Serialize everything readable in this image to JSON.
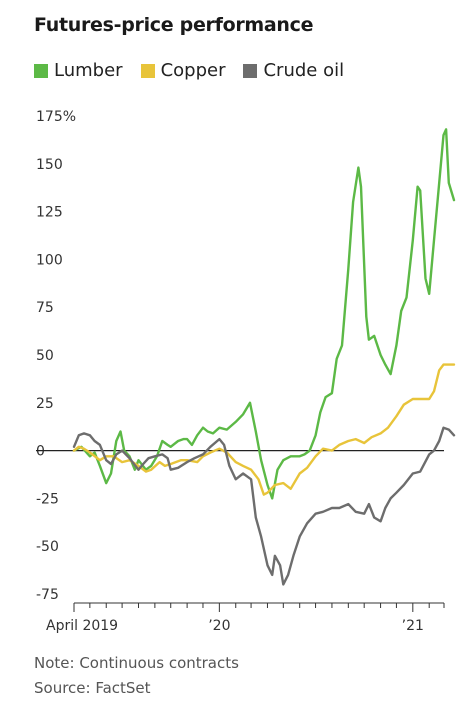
{
  "header": {
    "title": "Futures-price performance"
  },
  "legend": [
    {
      "label": "Lumber",
      "color": "#5cb946"
    },
    {
      "label": "Copper",
      "color": "#e8c43a"
    },
    {
      "label": "Crude oil",
      "color": "#6d6d6d"
    }
  ],
  "footer": {
    "note": "Note: Continuous contracts",
    "source": "Source: FactSet"
  },
  "chart_data": {
    "type": "line",
    "title": "Futures-price performance",
    "xlabel": "",
    "ylabel": "",
    "ylim": [
      -75,
      175
    ],
    "yticks": [
      -75,
      -50,
      -25,
      0,
      25,
      50,
      75,
      100,
      125,
      150,
      175
    ],
    "ytick_labels": [
      "-75",
      "-50",
      "-25",
      "0",
      "25",
      "50",
      "75",
      "100",
      "125",
      "150",
      "175%"
    ],
    "x_range": [
      "2019-04",
      "2021-03"
    ],
    "xtick_labels": [
      {
        "label": "April 2019",
        "x": "2019-04"
      },
      {
        "label": "’20",
        "x": "2020-01"
      },
      {
        "label": "’21",
        "x": "2021-01"
      }
    ],
    "grid": false,
    "legend_position": "top-left",
    "series": [
      {
        "name": "Lumber",
        "color": "#5cb946",
        "points": [
          [
            "2019-04",
            0
          ],
          [
            "2019-04-15",
            2
          ],
          [
            "2019-05",
            -3
          ],
          [
            "2019-05-10",
            -1
          ],
          [
            "2019-05-20",
            -8
          ],
          [
            "2019-06",
            -17
          ],
          [
            "2019-06-10",
            -12
          ],
          [
            "2019-06-20",
            5
          ],
          [
            "2019-06-28",
            10
          ],
          [
            "2019-07-05",
            0
          ],
          [
            "2019-07-15",
            -3
          ],
          [
            "2019-07-25",
            -10
          ],
          [
            "2019-08",
            -5
          ],
          [
            "2019-08-15",
            -10
          ],
          [
            "2019-08-25",
            -8
          ],
          [
            "2019-09-05",
            -3
          ],
          [
            "2019-09-15",
            5
          ],
          [
            "2019-09-25",
            3
          ],
          [
            "2019-10",
            2
          ],
          [
            "2019-10-15",
            5
          ],
          [
            "2019-10-25",
            6
          ],
          [
            "2019-11",
            6
          ],
          [
            "2019-11-10",
            3
          ],
          [
            "2019-11-20",
            8
          ],
          [
            "2019-12",
            12
          ],
          [
            "2019-12-10",
            10
          ],
          [
            "2019-12-20",
            9
          ],
          [
            "2020-01",
            12
          ],
          [
            "2020-01-15",
            11
          ],
          [
            "2020-02",
            15
          ],
          [
            "2020-02-15",
            19
          ],
          [
            "2020-02-28",
            25
          ],
          [
            "2020-03-10",
            10
          ],
          [
            "2020-03-20",
            -5
          ],
          [
            "2020-04",
            -18
          ],
          [
            "2020-04-10",
            -25
          ],
          [
            "2020-04-20",
            -10
          ],
          [
            "2020-05",
            -5
          ],
          [
            "2020-05-15",
            -3
          ],
          [
            "2020-06",
            -3
          ],
          [
            "2020-06-10",
            -2
          ],
          [
            "2020-06-20",
            0
          ],
          [
            "2020-07",
            8
          ],
          [
            "2020-07-10",
            20
          ],
          [
            "2020-07-20",
            28
          ],
          [
            "2020-08",
            30
          ],
          [
            "2020-08-10",
            48
          ],
          [
            "2020-08-20",
            55
          ],
          [
            "2020-09",
            95
          ],
          [
            "2020-09-10",
            130
          ],
          [
            "2020-09-20",
            148
          ],
          [
            "2020-09-25",
            138
          ],
          [
            "2020-10-05",
            70
          ],
          [
            "2020-10-10",
            58
          ],
          [
            "2020-10-20",
            60
          ],
          [
            "2020-11",
            50
          ],
          [
            "2020-11-10",
            45
          ],
          [
            "2020-11-20",
            40
          ],
          [
            "2020-12",
            55
          ],
          [
            "2020-12-10",
            73
          ],
          [
            "2020-12-20",
            80
          ],
          [
            "2021-01",
            110
          ],
          [
            "2021-01-10",
            138
          ],
          [
            "2021-01-15",
            136
          ],
          [
            "2021-01-25",
            90
          ],
          [
            "2021-02",
            82
          ],
          [
            "2021-02-10",
            110
          ],
          [
            "2021-02-20",
            140
          ],
          [
            "2021-02-28",
            165
          ],
          [
            "2021-03-05",
            168
          ],
          [
            "2021-03-10",
            140
          ],
          [
            "2021-03-20",
            131
          ]
        ]
      },
      {
        "name": "Copper",
        "color": "#e8c43a",
        "points": [
          [
            "2019-04",
            0
          ],
          [
            "2019-04-10",
            2
          ],
          [
            "2019-04-20",
            1
          ],
          [
            "2019-05",
            -1
          ],
          [
            "2019-05-20",
            -5
          ],
          [
            "2019-06",
            -3
          ],
          [
            "2019-06-15",
            -3
          ],
          [
            "2019-07",
            -6
          ],
          [
            "2019-07-15",
            -5
          ],
          [
            "2019-08",
            -8
          ],
          [
            "2019-08-15",
            -11
          ],
          [
            "2019-08-25",
            -10
          ],
          [
            "2019-09-10",
            -6
          ],
          [
            "2019-09-20",
            -8
          ],
          [
            "2019-10",
            -7
          ],
          [
            "2019-10-20",
            -5
          ],
          [
            "2019-11",
            -5
          ],
          [
            "2019-11-20",
            -6
          ],
          [
            "2019-12",
            -3
          ],
          [
            "2019-12-15",
            -1
          ],
          [
            "2020-01",
            1
          ],
          [
            "2020-01-15",
            -1
          ],
          [
            "2020-02",
            -6
          ],
          [
            "2020-02-15",
            -8
          ],
          [
            "2020-03",
            -10
          ],
          [
            "2020-03-15",
            -15
          ],
          [
            "2020-03-25",
            -23
          ],
          [
            "2020-04",
            -22
          ],
          [
            "2020-04-15",
            -18
          ],
          [
            "2020-05",
            -17
          ],
          [
            "2020-05-15",
            -20
          ],
          [
            "2020-06",
            -12
          ],
          [
            "2020-06-15",
            -9
          ],
          [
            "2020-07",
            -3
          ],
          [
            "2020-07-15",
            1
          ],
          [
            "2020-08",
            0
          ],
          [
            "2020-08-15",
            3
          ],
          [
            "2020-09",
            5
          ],
          [
            "2020-09-15",
            6
          ],
          [
            "2020-10",
            4
          ],
          [
            "2020-10-15",
            7
          ],
          [
            "2020-11",
            9
          ],
          [
            "2020-11-15",
            12
          ],
          [
            "2020-12",
            18
          ],
          [
            "2020-12-15",
            24
          ],
          [
            "2021-01",
            27
          ],
          [
            "2021-01-15",
            27
          ],
          [
            "2021-02",
            27
          ],
          [
            "2021-02-10",
            31
          ],
          [
            "2021-02-20",
            42
          ],
          [
            "2021-02-28",
            45
          ],
          [
            "2021-03-10",
            45
          ],
          [
            "2021-03-20",
            45
          ]
        ]
      },
      {
        "name": "Crude oil",
        "color": "#6d6d6d",
        "points": [
          [
            "2019-04",
            2
          ],
          [
            "2019-04-10",
            8
          ],
          [
            "2019-04-20",
            9
          ],
          [
            "2019-05",
            8
          ],
          [
            "2019-05-10",
            5
          ],
          [
            "2019-05-20",
            3
          ],
          [
            "2019-06",
            -5
          ],
          [
            "2019-06-10",
            -7
          ],
          [
            "2019-06-20",
            -2
          ],
          [
            "2019-07",
            0
          ],
          [
            "2019-07-15",
            -4
          ],
          [
            "2019-08",
            -10
          ],
          [
            "2019-08-10",
            -7
          ],
          [
            "2019-08-20",
            -4
          ],
          [
            "2019-09",
            -3
          ],
          [
            "2019-09-15",
            -2
          ],
          [
            "2019-09-25",
            -4
          ],
          [
            "2019-10",
            -10
          ],
          [
            "2019-10-15",
            -9
          ],
          [
            "2019-11",
            -6
          ],
          [
            "2019-11-15",
            -4
          ],
          [
            "2019-12",
            -2
          ],
          [
            "2019-12-15",
            2
          ],
          [
            "2020-01",
            6
          ],
          [
            "2020-01-10",
            3
          ],
          [
            "2020-01-20",
            -8
          ],
          [
            "2020-02",
            -15
          ],
          [
            "2020-02-15",
            -12
          ],
          [
            "2020-03",
            -15
          ],
          [
            "2020-03-10",
            -35
          ],
          [
            "2020-03-20",
            -45
          ],
          [
            "2020-04",
            -60
          ],
          [
            "2020-04-10",
            -65
          ],
          [
            "2020-04-15",
            -55
          ],
          [
            "2020-04-25",
            -60
          ],
          [
            "2020-05",
            -70
          ],
          [
            "2020-05-10",
            -65
          ],
          [
            "2020-05-20",
            -55
          ],
          [
            "2020-06",
            -45
          ],
          [
            "2020-06-15",
            -38
          ],
          [
            "2020-07",
            -33
          ],
          [
            "2020-07-15",
            -32
          ],
          [
            "2020-08",
            -30
          ],
          [
            "2020-08-15",
            -30
          ],
          [
            "2020-09",
            -28
          ],
          [
            "2020-09-15",
            -32
          ],
          [
            "2020-10",
            -33
          ],
          [
            "2020-10-10",
            -28
          ],
          [
            "2020-10-20",
            -35
          ],
          [
            "2020-11",
            -37
          ],
          [
            "2020-11-10",
            -30
          ],
          [
            "2020-11-20",
            -25
          ],
          [
            "2020-12",
            -22
          ],
          [
            "2020-12-15",
            -18
          ],
          [
            "2021-01",
            -12
          ],
          [
            "2021-01-15",
            -11
          ],
          [
            "2021-02",
            -2
          ],
          [
            "2021-02-10",
            0
          ],
          [
            "2021-02-20",
            5
          ],
          [
            "2021-02-28",
            12
          ],
          [
            "2021-03-10",
            11
          ],
          [
            "2021-03-20",
            8
          ]
        ]
      }
    ]
  }
}
